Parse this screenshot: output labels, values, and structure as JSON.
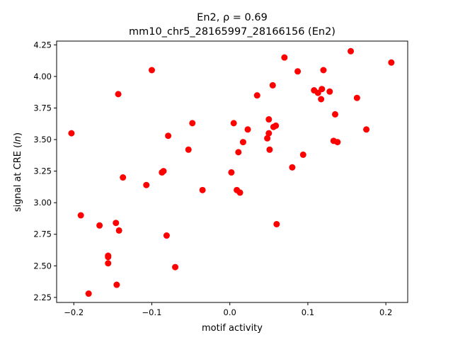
{
  "chart_data": {
    "type": "scatter",
    "title_line1": "En2, ρ = 0.69",
    "title_line2": "mm10_chr5_28165997_28166156 (En2)",
    "xlabel": "motif activity",
    "ylabel": "signal at CRE (ln)",
    "xlim": [
      -0.222,
      0.228
    ],
    "ylim": [
      2.21,
      4.28
    ],
    "xticks": [
      {
        "v": -0.2,
        "label": "−0.2"
      },
      {
        "v": -0.1,
        "label": "−0.1"
      },
      {
        "v": 0.0,
        "label": "0.0"
      },
      {
        "v": 0.1,
        "label": "0.1"
      },
      {
        "v": 0.2,
        "label": "0.2"
      }
    ],
    "yticks": [
      {
        "v": 2.25,
        "label": "2.25"
      },
      {
        "v": 2.5,
        "label": "2.50"
      },
      {
        "v": 2.75,
        "label": "2.75"
      },
      {
        "v": 3.0,
        "label": "3.00"
      },
      {
        "v": 3.25,
        "label": "3.25"
      },
      {
        "v": 3.5,
        "label": "3.50"
      },
      {
        "v": 3.75,
        "label": "3.75"
      },
      {
        "v": 4.0,
        "label": "4.00"
      },
      {
        "v": 4.25,
        "label": "4.25"
      }
    ],
    "point_color": "#ff0000",
    "grid": false,
    "points": [
      [
        -0.203,
        3.55
      ],
      [
        -0.191,
        2.9
      ],
      [
        -0.181,
        2.28
      ],
      [
        -0.167,
        2.82
      ],
      [
        -0.156,
        2.58
      ],
      [
        -0.156,
        2.57
      ],
      [
        -0.156,
        2.52
      ],
      [
        -0.146,
        2.84
      ],
      [
        -0.145,
        2.35
      ],
      [
        -0.143,
        3.86
      ],
      [
        -0.142,
        2.78
      ],
      [
        -0.137,
        3.2
      ],
      [
        -0.107,
        3.14
      ],
      [
        -0.1,
        4.05
      ],
      [
        -0.087,
        3.24
      ],
      [
        -0.085,
        3.25
      ],
      [
        -0.081,
        2.74
      ],
      [
        -0.079,
        3.53
      ],
      [
        -0.07,
        2.49
      ],
      [
        -0.053,
        3.42
      ],
      [
        -0.048,
        3.63
      ],
      [
        -0.035,
        3.1
      ],
      [
        0.002,
        3.24
      ],
      [
        0.005,
        3.63
      ],
      [
        0.009,
        3.1
      ],
      [
        0.011,
        3.4
      ],
      [
        0.013,
        3.08
      ],
      [
        0.017,
        3.48
      ],
      [
        0.023,
        3.58
      ],
      [
        0.035,
        3.85
      ],
      [
        0.048,
        3.51
      ],
      [
        0.05,
        3.55
      ],
      [
        0.05,
        3.66
      ],
      [
        0.051,
        3.42
      ],
      [
        0.055,
        3.93
      ],
      [
        0.056,
        3.6
      ],
      [
        0.059,
        3.61
      ],
      [
        0.06,
        2.83
      ],
      [
        0.07,
        4.15
      ],
      [
        0.08,
        3.28
      ],
      [
        0.087,
        4.04
      ],
      [
        0.094,
        3.38
      ],
      [
        0.108,
        3.89
      ],
      [
        0.113,
        3.87
      ],
      [
        0.117,
        3.82
      ],
      [
        0.118,
        3.9
      ],
      [
        0.12,
        4.05
      ],
      [
        0.128,
        3.88
      ],
      [
        0.133,
        3.49
      ],
      [
        0.135,
        3.7
      ],
      [
        0.138,
        3.48
      ],
      [
        0.155,
        4.2
      ],
      [
        0.163,
        3.83
      ],
      [
        0.175,
        3.58
      ],
      [
        0.207,
        4.11
      ]
    ]
  }
}
